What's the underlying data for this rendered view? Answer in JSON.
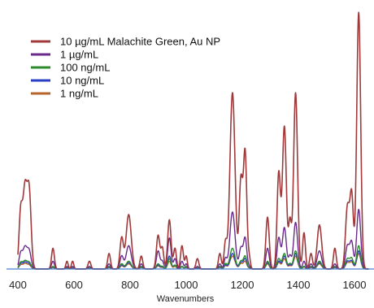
{
  "chart_data": {
    "type": "line",
    "xlabel": "Wavenumbers",
    "ylabel": "",
    "title": "",
    "xlim": [
      400,
      1650
    ],
    "ylim": [
      0,
      100
    ],
    "xticks": [
      400,
      600,
      800,
      1000,
      1200,
      1400,
      1600
    ],
    "grid": false,
    "legend_position": "top-left",
    "baseline_color": "#4a7fcf",
    "peaks": [
      {
        "center": 410,
        "width": 6
      },
      {
        "center": 425,
        "width": 7
      },
      {
        "center": 440,
        "width": 7
      },
      {
        "center": 525,
        "width": 5
      },
      {
        "center": 575,
        "width": 4
      },
      {
        "center": 595,
        "width": 4
      },
      {
        "center": 655,
        "width": 5
      },
      {
        "center": 725,
        "width": 5
      },
      {
        "center": 770,
        "width": 6
      },
      {
        "center": 795,
        "width": 9
      },
      {
        "center": 840,
        "width": 5
      },
      {
        "center": 900,
        "width": 6
      },
      {
        "center": 915,
        "width": 5
      },
      {
        "center": 940,
        "width": 6
      },
      {
        "center": 960,
        "width": 5
      },
      {
        "center": 985,
        "width": 5
      },
      {
        "center": 1000,
        "width": 4
      },
      {
        "center": 1040,
        "width": 5
      },
      {
        "center": 1120,
        "width": 5
      },
      {
        "center": 1140,
        "width": 5
      },
      {
        "center": 1165,
        "width": 9
      },
      {
        "center": 1195,
        "width": 6
      },
      {
        "center": 1210,
        "width": 6
      },
      {
        "center": 1225,
        "width": 4
      },
      {
        "center": 1290,
        "width": 6
      },
      {
        "center": 1330,
        "width": 6
      },
      {
        "center": 1350,
        "width": 7
      },
      {
        "center": 1370,
        "width": 5
      },
      {
        "center": 1390,
        "width": 7
      },
      {
        "center": 1420,
        "width": 5
      },
      {
        "center": 1445,
        "width": 5
      },
      {
        "center": 1475,
        "width": 8
      },
      {
        "center": 1530,
        "width": 5
      },
      {
        "center": 1575,
        "width": 7
      },
      {
        "center": 1590,
        "width": 6
      },
      {
        "center": 1615,
        "width": 7
      }
    ],
    "series": [
      {
        "name": "10 µg/mL Malachite Green, Au NP",
        "color": "#a0393a",
        "values": [
          22,
          30,
          30,
          8,
          3,
          3,
          3,
          6,
          12,
          21,
          5,
          13,
          8,
          19,
          8,
          9,
          5,
          4,
          6,
          10,
          68,
          34,
          45,
          4,
          20,
          37,
          55,
          18,
          68,
          14,
          6,
          17,
          8,
          24,
          28,
          99
        ]
      },
      {
        "name": "1 µg/mL",
        "color": "#6a2a8c",
        "values": [
          6,
          8,
          7,
          3,
          1,
          1,
          1,
          2,
          5,
          9,
          2,
          7,
          3,
          12,
          4,
          3,
          2,
          1,
          2,
          4,
          22,
          8,
          12,
          1,
          8,
          12,
          16,
          5,
          18,
          3,
          2,
          7,
          2,
          9,
          10,
          23
        ]
      },
      {
        "name": "100 ng/mL",
        "color": "#2e8b2e",
        "values": [
          2.5,
          3,
          2.5,
          1,
          0.5,
          0.5,
          0.5,
          1,
          2,
          3,
          1,
          2,
          1,
          4,
          1.5,
          1,
          1,
          0.5,
          1,
          2,
          8,
          3,
          5,
          0.5,
          3,
          4,
          6,
          2,
          7,
          1,
          1,
          3,
          1,
          4,
          4,
          9
        ]
      },
      {
        "name": "10 ng/mL",
        "color": "#2a3fc4",
        "values": [
          2,
          2.5,
          2,
          0.8,
          0.4,
          0.4,
          0.4,
          0.8,
          1.5,
          2.5,
          0.8,
          1.5,
          0.8,
          5,
          1.5,
          1,
          0.8,
          0.4,
          0.8,
          1.5,
          6,
          2.5,
          4,
          0.4,
          2.5,
          3,
          5,
          1.5,
          6,
          1,
          0.8,
          2.5,
          0.8,
          3,
          3,
          7
        ]
      },
      {
        "name": "1 ng/mL",
        "color": "#b8642e",
        "values": [
          1.5,
          2,
          1.5,
          0.6,
          0.3,
          0.3,
          0.3,
          0.6,
          1.2,
          2,
          0.6,
          1.2,
          0.6,
          3,
          1,
          0.8,
          0.6,
          0.3,
          0.6,
          1.2,
          5,
          2,
          3,
          0.3,
          2,
          2.5,
          4,
          1.2,
          5,
          0.8,
          0.6,
          2,
          0.6,
          2.5,
          2.5,
          6
        ]
      }
    ]
  }
}
